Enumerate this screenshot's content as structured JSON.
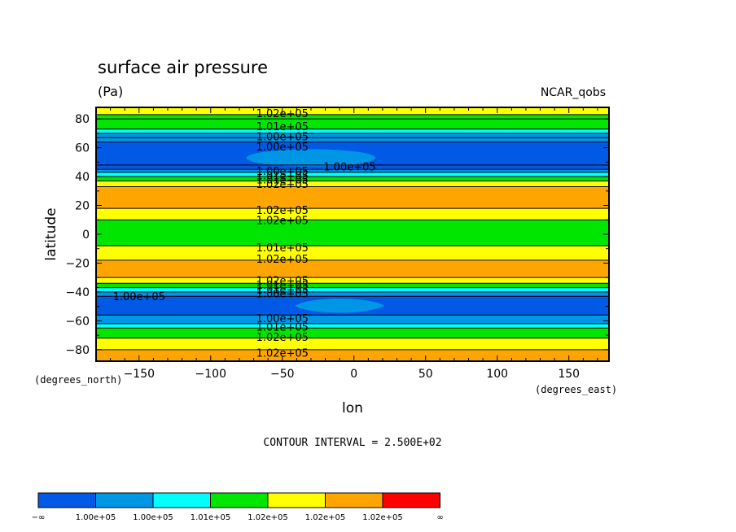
{
  "chart_data": {
    "type": "heatmap",
    "title": "surface air pressure",
    "units": "(Pa)",
    "dataset": "NCAR_qobs",
    "xlabel": "lon",
    "ylabel": "latitude",
    "x_units": "(degrees_east)",
    "y_units": "(degrees_north)",
    "xlim": [
      -180,
      178
    ],
    "ylim": [
      -88,
      88
    ],
    "xticks": [
      -150,
      -100,
      -50,
      0,
      50,
      100,
      150
    ],
    "yticks": [
      80,
      60,
      40,
      20,
      0,
      -20,
      -40,
      -60,
      -80
    ],
    "contour_interval_text": "CONTOUR INTERVAL = 2.500E+02",
    "colorbar": {
      "colors": [
        "#005ae6",
        "#0096e6",
        "#00ffff",
        "#00e600",
        "#ffff00",
        "#ffa500",
        "#ff0000"
      ],
      "labels": [
        "−∞",
        "1.00e+05",
        "1.00e+05",
        "1.01e+05",
        "1.02e+05",
        "1.02e+05",
        "1.02e+05",
        "∞"
      ]
    },
    "zonal_bands": [
      {
        "lat_from": 88,
        "lat_to": 83,
        "level": 4
      },
      {
        "lat_from": 83,
        "lat_to": 80,
        "level": 3
      },
      {
        "lat_from": 80,
        "lat_to": 73,
        "level": 3
      },
      {
        "lat_from": 73,
        "lat_to": 70,
        "level": 2
      },
      {
        "lat_from": 70,
        "lat_to": 67,
        "level": 1
      },
      {
        "lat_from": 67,
        "lat_to": 64,
        "level": 1
      },
      {
        "lat_from": 64,
        "lat_to": 48,
        "level": 0
      },
      {
        "lat_from": 48,
        "lat_to": 45,
        "level": 0
      },
      {
        "lat_from": 45,
        "lat_to": 43,
        "level": 1
      },
      {
        "lat_from": 43,
        "lat_to": 40,
        "level": 2
      },
      {
        "lat_from": 40,
        "lat_to": 37,
        "level": 3
      },
      {
        "lat_from": 37,
        "lat_to": 33,
        "level": 4
      },
      {
        "lat_from": 33,
        "lat_to": 18,
        "level": 5
      },
      {
        "lat_from": 18,
        "lat_to": 10,
        "level": 4
      },
      {
        "lat_from": 10,
        "lat_to": -8,
        "level": 3
      },
      {
        "lat_from": -8,
        "lat_to": -18,
        "level": 4
      },
      {
        "lat_from": -18,
        "lat_to": -30,
        "level": 5
      },
      {
        "lat_from": -30,
        "lat_to": -34,
        "level": 4
      },
      {
        "lat_from": -34,
        "lat_to": -37,
        "level": 3
      },
      {
        "lat_from": -37,
        "lat_to": -40,
        "level": 2
      },
      {
        "lat_from": -40,
        "lat_to": -43,
        "level": 1
      },
      {
        "lat_from": -43,
        "lat_to": -56,
        "level": 0
      },
      {
        "lat_from": -56,
        "lat_to": -62,
        "level": 1
      },
      {
        "lat_from": -62,
        "lat_to": -65,
        "level": 2
      },
      {
        "lat_from": -65,
        "lat_to": -72,
        "level": 3
      },
      {
        "lat_from": -72,
        "lat_to": -80,
        "level": 4
      },
      {
        "lat_from": -80,
        "lat_to": -88,
        "level": 5
      }
    ],
    "north_blue_dip": {
      "lon_center": -30,
      "lat_center": 53,
      "lon_halfwidth": 45,
      "lat_halfwidth": 6,
      "level": 1
    },
    "south_light_notch": {
      "lon_from": -30,
      "lon_to": 10,
      "lat_from": -43,
      "lat_to": -56,
      "level": 1
    },
    "contour_labels": [
      {
        "text": "1.02e+05",
        "lon": -50,
        "lat": 84
      },
      {
        "text": "1.01e+05",
        "lon": -50,
        "lat": 75
      },
      {
        "text": "1.00e+05",
        "lon": -50,
        "lat": 68
      },
      {
        "text": "1.00e+05",
        "lon": -50,
        "lat": 61
      },
      {
        "text": "1.00e+05",
        "lon": -3,
        "lat": 47
      },
      {
        "text": "1.00e+05",
        "lon": -50,
        "lat": 44
      },
      {
        "text": "1.01e+05",
        "lon": -50,
        "lat": 41
      },
      {
        "text": "1.01e+05",
        "lon": -50,
        "lat": 38
      },
      {
        "text": "1.02e+05",
        "lon": -50,
        "lat": 35
      },
      {
        "text": "1.02e+05",
        "lon": -50,
        "lat": 17
      },
      {
        "text": "1.02e+05",
        "lon": -50,
        "lat": 10
      },
      {
        "text": "1.01e+05",
        "lon": -50,
        "lat": -9
      },
      {
        "text": "1.02e+05",
        "lon": -50,
        "lat": -17
      },
      {
        "text": "1.02e+05",
        "lon": -50,
        "lat": -32
      },
      {
        "text": "1.01e+05",
        "lon": -50,
        "lat": -35
      },
      {
        "text": "1.01e+05",
        "lon": -50,
        "lat": -38
      },
      {
        "text": "1.00e+05",
        "lon": -50,
        "lat": -41
      },
      {
        "text": "1.00e+05",
        "lon": -150,
        "lat": -43
      },
      {
        "text": "1.00e+05",
        "lon": -50,
        "lat": -58
      },
      {
        "text": "1.01e+05",
        "lon": -50,
        "lat": -64
      },
      {
        "text": "1.02e+05",
        "lon": -50,
        "lat": -71
      },
      {
        "text": "1.02e+05",
        "lon": -50,
        "lat": -82
      }
    ]
  }
}
